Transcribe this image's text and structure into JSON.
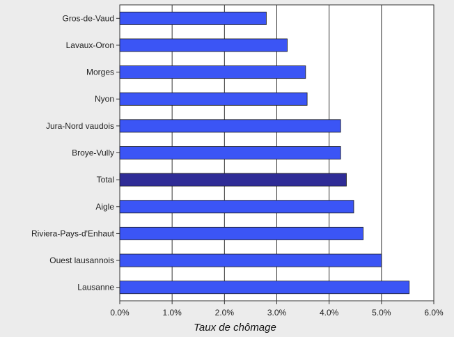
{
  "chart_data": {
    "type": "bar",
    "orientation": "horizontal",
    "title": "",
    "xlabel": "Taux de chômage",
    "ylabel": "",
    "xlim": [
      0,
      6
    ],
    "x_ticks": [
      "0.0%",
      "1.0%",
      "2.0%",
      "3.0%",
      "4.0%",
      "5.0%",
      "6.0%"
    ],
    "grid": "vertical",
    "categories": [
      "Gros-de-Vaud",
      "Lavaux-Oron",
      "Morges",
      "Nyon",
      "Jura-Nord vaudois",
      "Broye-Vully",
      "Total",
      "Aigle",
      "Riviera-Pays-d'Enhaut",
      "Ouest lausannois",
      "Lausanne"
    ],
    "values": [
      2.8,
      3.2,
      3.55,
      3.58,
      4.22,
      4.22,
      4.33,
      4.47,
      4.65,
      5.0,
      5.53
    ],
    "highlight_category": "Total",
    "colors": {
      "bar": "#3b55f5",
      "bar_highlight": "#2f2c96",
      "plot_bg": "#ffffff",
      "page_bg": "#ececec",
      "grid": "#333333"
    }
  }
}
